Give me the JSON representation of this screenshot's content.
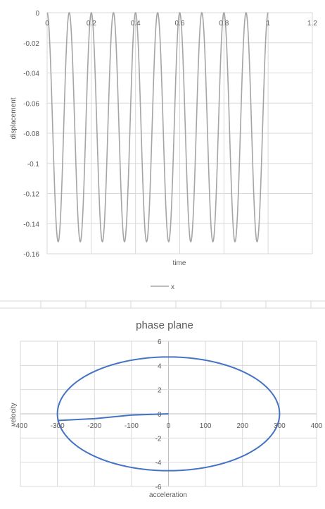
{
  "chart_data": [
    {
      "type": "line",
      "title": "",
      "xlabel": "time",
      "ylabel": "displacement",
      "xlim": [
        0,
        1.2
      ],
      "ylim": [
        -0.16,
        0
      ],
      "xticks": [
        "0",
        "0.2",
        "0.4",
        "0.6",
        "0.8",
        "1",
        "1.2"
      ],
      "yticks": [
        "0",
        "-0.02",
        "-0.04",
        "-0.06",
        "-0.08",
        "-0.1",
        "-0.12",
        "-0.14",
        "-0.16"
      ],
      "grid": true,
      "legend": "bottom",
      "series": [
        {
          "name": "x",
          "color": "#a5a5a5",
          "period": 0.1,
          "min": -0.152,
          "max": 0,
          "t_start": 0,
          "t_end": 1
        }
      ]
    },
    {
      "type": "line",
      "title": "phase plane",
      "xlabel": "acceleration",
      "ylabel": "velocity",
      "xlim": [
        -400,
        400
      ],
      "ylim": [
        -6,
        6
      ],
      "xticks": [
        "-400",
        "-300",
        "-200",
        "-100",
        "0",
        "100",
        "200",
        "300",
        "400"
      ],
      "yticks": [
        "6",
        "4",
        "2",
        "0",
        "-2",
        "-4",
        "-6"
      ],
      "grid": true,
      "legend": "none",
      "series": [
        {
          "color": "#4472c4",
          "ellipse": {
            "cx": 0,
            "cy": 0,
            "rx": 300,
            "ry": 4.7
          },
          "start_segment": [
            [
              0,
              0
            ],
            [
              -100,
              -0.1
            ],
            [
              -200,
              -0.4
            ],
            [
              -300,
              -0.55
            ]
          ]
        }
      ]
    }
  ]
}
